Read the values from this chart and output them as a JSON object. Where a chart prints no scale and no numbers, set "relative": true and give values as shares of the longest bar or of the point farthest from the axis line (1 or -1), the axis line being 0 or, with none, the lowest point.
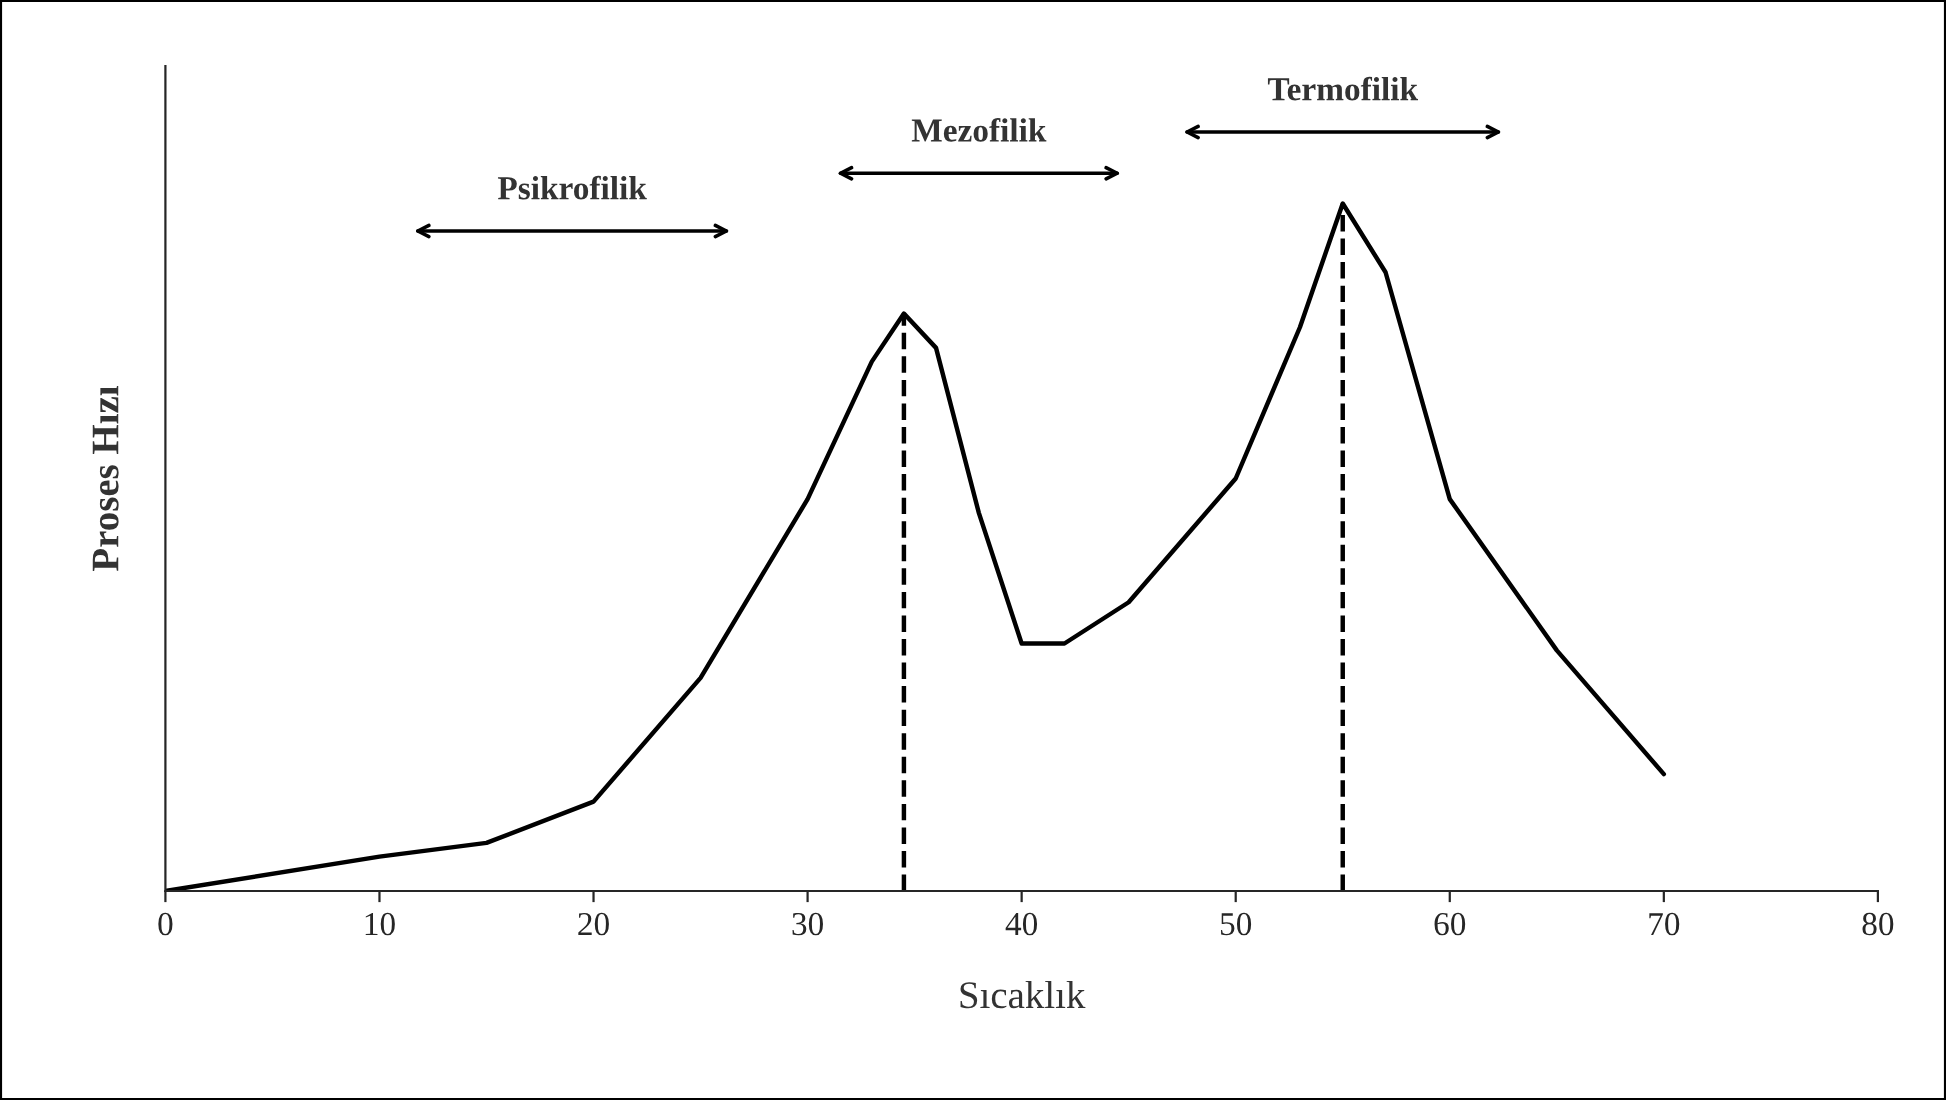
{
  "chart_data": {
    "type": "line",
    "relative": true,
    "xlabel": "Sıcaklık",
    "ylabel": "Proses Hızı",
    "x": [
      0,
      10,
      15,
      20,
      25,
      30,
      33,
      34.5,
      36,
      38,
      40,
      42,
      45,
      50,
      53,
      55,
      57,
      60,
      65,
      70
    ],
    "series": [
      {
        "color": "#000000",
        "values": [
          0,
          0.05,
          0.07,
          0.13,
          0.31,
          0.57,
          0.77,
          0.84,
          0.79,
          0.55,
          0.36,
          0.36,
          0.42,
          0.6,
          0.82,
          1.0,
          0.9,
          0.57,
          0.35,
          0.17
        ]
      }
    ],
    "xlim": [
      0,
      80
    ],
    "xticks": [
      0,
      10,
      20,
      30,
      40,
      50,
      60,
      70,
      80
    ],
    "ref_lines": [
      {
        "axis": "x",
        "value": 34.5,
        "line_style": "dashed",
        "color": "#000000"
      },
      {
        "axis": "x",
        "value": 55,
        "line_style": "dashed",
        "color": "#000000"
      }
    ],
    "annotations": [
      "Psikrofilik",
      "Mezofilik",
      "Termofilik"
    ],
    "grid": false,
    "legend": false
  }
}
